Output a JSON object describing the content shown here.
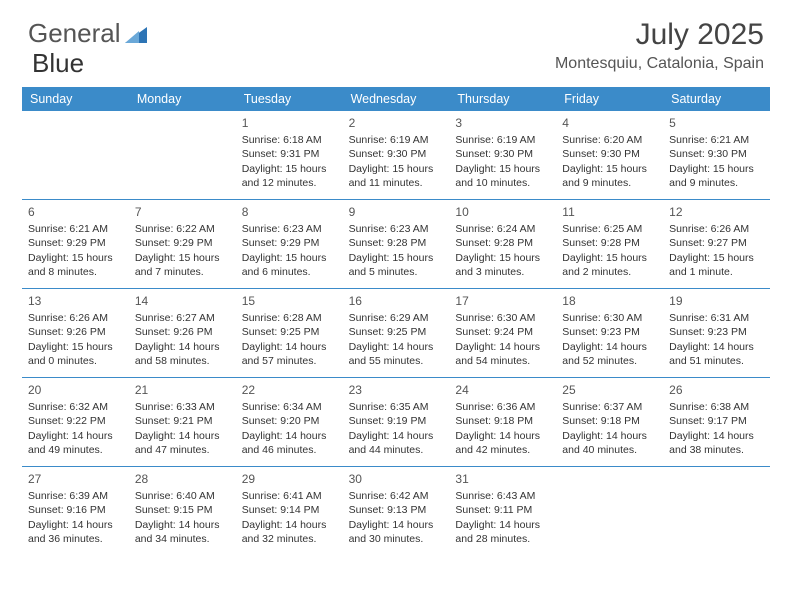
{
  "brand": {
    "part1": "General",
    "part2": "Blue"
  },
  "title": "July 2025",
  "location": "Montesquiu, Catalonia, Spain",
  "colors": {
    "header_bg": "#3b8bc9",
    "header_fg": "#ffffff",
    "border": "#3b8bc9",
    "text": "#333333",
    "logo_accent": "#2d74b5"
  },
  "day_labels": [
    "Sunday",
    "Monday",
    "Tuesday",
    "Wednesday",
    "Thursday",
    "Friday",
    "Saturday"
  ],
  "weeks": [
    [
      null,
      null,
      {
        "n": "1",
        "sr": "6:18 AM",
        "ss": "9:31 PM",
        "dl1": "15 hours",
        "dl2": "and 12 minutes."
      },
      {
        "n": "2",
        "sr": "6:19 AM",
        "ss": "9:30 PM",
        "dl1": "15 hours",
        "dl2": "and 11 minutes."
      },
      {
        "n": "3",
        "sr": "6:19 AM",
        "ss": "9:30 PM",
        "dl1": "15 hours",
        "dl2": "and 10 minutes."
      },
      {
        "n": "4",
        "sr": "6:20 AM",
        "ss": "9:30 PM",
        "dl1": "15 hours",
        "dl2": "and 9 minutes."
      },
      {
        "n": "5",
        "sr": "6:21 AM",
        "ss": "9:30 PM",
        "dl1": "15 hours",
        "dl2": "and 9 minutes."
      }
    ],
    [
      {
        "n": "6",
        "sr": "6:21 AM",
        "ss": "9:29 PM",
        "dl1": "15 hours",
        "dl2": "and 8 minutes."
      },
      {
        "n": "7",
        "sr": "6:22 AM",
        "ss": "9:29 PM",
        "dl1": "15 hours",
        "dl2": "and 7 minutes."
      },
      {
        "n": "8",
        "sr": "6:23 AM",
        "ss": "9:29 PM",
        "dl1": "15 hours",
        "dl2": "and 6 minutes."
      },
      {
        "n": "9",
        "sr": "6:23 AM",
        "ss": "9:28 PM",
        "dl1": "15 hours",
        "dl2": "and 5 minutes."
      },
      {
        "n": "10",
        "sr": "6:24 AM",
        "ss": "9:28 PM",
        "dl1": "15 hours",
        "dl2": "and 3 minutes."
      },
      {
        "n": "11",
        "sr": "6:25 AM",
        "ss": "9:28 PM",
        "dl1": "15 hours",
        "dl2": "and 2 minutes."
      },
      {
        "n": "12",
        "sr": "6:26 AM",
        "ss": "9:27 PM",
        "dl1": "15 hours",
        "dl2": "and 1 minute."
      }
    ],
    [
      {
        "n": "13",
        "sr": "6:26 AM",
        "ss": "9:26 PM",
        "dl1": "15 hours",
        "dl2": "and 0 minutes."
      },
      {
        "n": "14",
        "sr": "6:27 AM",
        "ss": "9:26 PM",
        "dl1": "14 hours",
        "dl2": "and 58 minutes."
      },
      {
        "n": "15",
        "sr": "6:28 AM",
        "ss": "9:25 PM",
        "dl1": "14 hours",
        "dl2": "and 57 minutes."
      },
      {
        "n": "16",
        "sr": "6:29 AM",
        "ss": "9:25 PM",
        "dl1": "14 hours",
        "dl2": "and 55 minutes."
      },
      {
        "n": "17",
        "sr": "6:30 AM",
        "ss": "9:24 PM",
        "dl1": "14 hours",
        "dl2": "and 54 minutes."
      },
      {
        "n": "18",
        "sr": "6:30 AM",
        "ss": "9:23 PM",
        "dl1": "14 hours",
        "dl2": "and 52 minutes."
      },
      {
        "n": "19",
        "sr": "6:31 AM",
        "ss": "9:23 PM",
        "dl1": "14 hours",
        "dl2": "and 51 minutes."
      }
    ],
    [
      {
        "n": "20",
        "sr": "6:32 AM",
        "ss": "9:22 PM",
        "dl1": "14 hours",
        "dl2": "and 49 minutes."
      },
      {
        "n": "21",
        "sr": "6:33 AM",
        "ss": "9:21 PM",
        "dl1": "14 hours",
        "dl2": "and 47 minutes."
      },
      {
        "n": "22",
        "sr": "6:34 AM",
        "ss": "9:20 PM",
        "dl1": "14 hours",
        "dl2": "and 46 minutes."
      },
      {
        "n": "23",
        "sr": "6:35 AM",
        "ss": "9:19 PM",
        "dl1": "14 hours",
        "dl2": "and 44 minutes."
      },
      {
        "n": "24",
        "sr": "6:36 AM",
        "ss": "9:18 PM",
        "dl1": "14 hours",
        "dl2": "and 42 minutes."
      },
      {
        "n": "25",
        "sr": "6:37 AM",
        "ss": "9:18 PM",
        "dl1": "14 hours",
        "dl2": "and 40 minutes."
      },
      {
        "n": "26",
        "sr": "6:38 AM",
        "ss": "9:17 PM",
        "dl1": "14 hours",
        "dl2": "and 38 minutes."
      }
    ],
    [
      {
        "n": "27",
        "sr": "6:39 AM",
        "ss": "9:16 PM",
        "dl1": "14 hours",
        "dl2": "and 36 minutes."
      },
      {
        "n": "28",
        "sr": "6:40 AM",
        "ss": "9:15 PM",
        "dl1": "14 hours",
        "dl2": "and 34 minutes."
      },
      {
        "n": "29",
        "sr": "6:41 AM",
        "ss": "9:14 PM",
        "dl1": "14 hours",
        "dl2": "and 32 minutes."
      },
      {
        "n": "30",
        "sr": "6:42 AM",
        "ss": "9:13 PM",
        "dl1": "14 hours",
        "dl2": "and 30 minutes."
      },
      {
        "n": "31",
        "sr": "6:43 AM",
        "ss": "9:11 PM",
        "dl1": "14 hours",
        "dl2": "and 28 minutes."
      },
      null,
      null
    ]
  ],
  "labels": {
    "sunrise": "Sunrise:",
    "sunset": "Sunset:",
    "daylight": "Daylight:"
  }
}
